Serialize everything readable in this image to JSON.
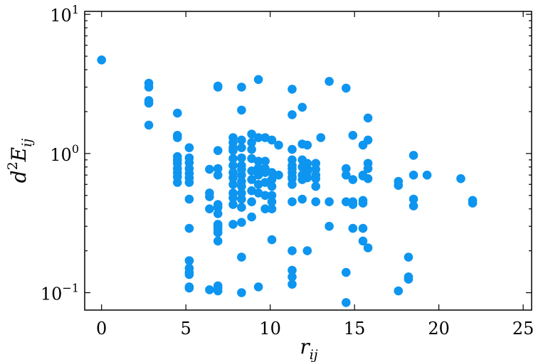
{
  "chart_data": {
    "type": "scatter",
    "xlabel_main": "r",
    "xlabel_sub": "ij",
    "ylabel_prefix": "d",
    "ylabel_sup": "2",
    "ylabel_main": "E",
    "ylabel_sub": "ij",
    "xlim": [
      -1,
      25.5
    ],
    "ylim": [
      0.075,
      10.5
    ],
    "yscale": "log",
    "x_ticks": [
      0,
      5,
      10,
      15,
      20,
      25
    ],
    "y_ticks": [
      {
        "value": 10,
        "base": "10",
        "exp": "1"
      },
      {
        "value": 1,
        "base": "10",
        "exp": "0"
      },
      {
        "value": 0.1,
        "base": "10",
        "exp": "−1"
      }
    ],
    "marker_color": "#0d95f0",
    "x": [
      0,
      2.8,
      2.8,
      2.8,
      2.8,
      2.8,
      4.5,
      4.5,
      4.5,
      4.5,
      4.5,
      4.5,
      4.5,
      4.5,
      4.5,
      4.5,
      5.2,
      5.2,
      5.2,
      5.2,
      5.2,
      5.2,
      5.2,
      5.2,
      5.2,
      5.2,
      5.2,
      5.2,
      5.2,
      5.2,
      5.2,
      6.4,
      6.4,
      6.4,
      6.4,
      6.4,
      6.9,
      6.9,
      6.9,
      6.9,
      6.9,
      6.9,
      6.9,
      6.9,
      6.9,
      6.9,
      6.9,
      6.9,
      6.9,
      6.9,
      6.9,
      6.9,
      7.8,
      7.8,
      7.8,
      7.8,
      7.8,
      7.8,
      7.8,
      7.8,
      7.8,
      7.8,
      7.8,
      7.8,
      7.8,
      8.3,
      8.3,
      8.3,
      8.3,
      8.3,
      8.3,
      8.3,
      8.3,
      8.3,
      8.3,
      8.3,
      8.3,
      8.3,
      8.3,
      8.3,
      8.3,
      8.9,
      8.9,
      8.9,
      8.9,
      8.9,
      8.9,
      8.9,
      8.9,
      8.9,
      9.3,
      9.3,
      9.3,
      9.3,
      9.3,
      9.3,
      9.3,
      9.3,
      9.7,
      9.7,
      9.7,
      9.7,
      9.7,
      9.7,
      9.7,
      10.1,
      10.1,
      10.1,
      10.1,
      10.1,
      10.1,
      10.1,
      10.1,
      10.5,
      10.5,
      11.3,
      11.3,
      11.3,
      11.3,
      11.3,
      11.3,
      11.3,
      11.3,
      11.3,
      11.3,
      11.3,
      11.3,
      11.3,
      11.3,
      11.3,
      11.9,
      11.9,
      11.9,
      11.9,
      11.9,
      11.9,
      11.9,
      12.2,
      12.2,
      12.2,
      12.2,
      12.2,
      12.2,
      12.7,
      12.7,
      12.7,
      12.7,
      12.7,
      12.7,
      13,
      13.5,
      13.5,
      13.5,
      14.5,
      14.5,
      14.5,
      14.5,
      14.5,
      14.5,
      14.9,
      14.9,
      14.9,
      14.9,
      14.9,
      15.5,
      15.5,
      15.5,
      15.5,
      15.5,
      15.5,
      15.5,
      15.8,
      15.8,
      15.8,
      15.8,
      15.8,
      15.8,
      17.6,
      17.6,
      17.6,
      18.2,
      18.2,
      18.2,
      18.5,
      18.5,
      18.5,
      18.5,
      19.3,
      21.3,
      22,
      22
    ],
    "y": [
      4.7,
      3.2,
      3,
      2.4,
      2.3,
      1.6,
      1.95,
      1.35,
      1.3,
      0.95,
      0.9,
      0.85,
      0.78,
      0.73,
      0.68,
      0.62,
      1.1,
      0.93,
      0.86,
      0.78,
      0.72,
      0.67,
      0.62,
      0.47,
      0.29,
      0.17,
      0.15,
      0.14,
      0.135,
      0.11,
      0.108,
      0.77,
      0.52,
      0.49,
      0.4,
      0.105,
      3.05,
      3,
      1.05,
      0.78,
      0.7,
      0.43,
      0.41,
      0.37,
      0.31,
      0.3,
      0.285,
      0.27,
      0.235,
      0.112,
      0.108,
      0.103,
      1.3,
      1.2,
      1.1,
      1.05,
      0.92,
      0.82,
      0.73,
      0.67,
      0.6,
      0.52,
      0.48,
      0.43,
      0.31,
      3,
      2.05,
      1.25,
      1.1,
      0.93,
      0.82,
      0.77,
      0.7,
      0.63,
      0.58,
      0.52,
      0.47,
      0.41,
      0.32,
      0.18,
      0.1,
      1.38,
      1.2,
      1.07,
      0.92,
      0.75,
      0.65,
      0.54,
      0.45,
      0.35,
      3.4,
      1.3,
      0.88,
      0.79,
      0.7,
      0.6,
      0.52,
      0.11,
      1.3,
      0.88,
      0.78,
      0.73,
      0.62,
      0.5,
      0.4,
      1.25,
      0.73,
      0.65,
      0.58,
      0.5,
      0.45,
      0.4,
      0.24,
      1.15,
      0.7,
      2.9,
      1.9,
      1.07,
      0.9,
      0.82,
      0.78,
      0.73,
      0.68,
      0.66,
      0.6,
      0.45,
      0.2,
      0.145,
      0.13,
      0.115,
      2.15,
      1.17,
      0.9,
      0.8,
      0.7,
      0.65,
      0.47,
      1.15,
      0.85,
      0.78,
      0.74,
      0.67,
      0.2,
      0.85,
      0.77,
      0.7,
      0.66,
      0.58,
      0.45,
      1.3,
      3.3,
      0.45,
      0.3,
      2.95,
      0.78,
      0.7,
      0.45,
      0.14,
      0.085,
      1.35,
      0.65,
      0.45,
      0.43,
      0.29,
      1.15,
      0.7,
      0.69,
      0.46,
      0.44,
      0.29,
      0.235,
      1.8,
      1.25,
      0.85,
      0.78,
      0.66,
      0.21,
      0.63,
      0.59,
      0.103,
      0.18,
      0.13,
      0.125,
      0.97,
      0.7,
      0.47,
      0.42,
      0.7,
      0.66,
      0.46,
      0.44
    ]
  }
}
